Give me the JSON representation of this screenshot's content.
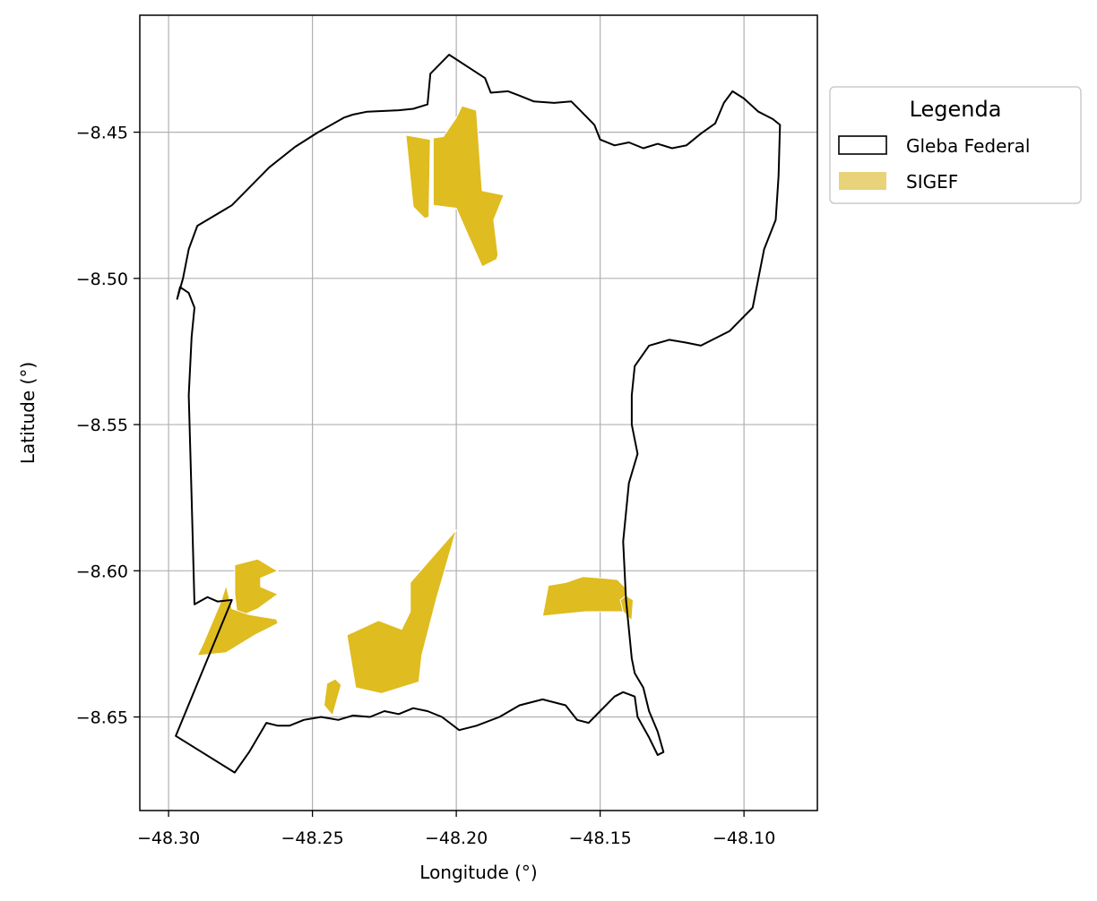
{
  "chart_data": {
    "type": "map",
    "title": "",
    "xlabel": "Longitude (°)",
    "ylabel": "Latitude (°)",
    "xlim": [
      -48.31,
      -48.0745
    ],
    "ylim": [
      -8.682,
      -8.41
    ],
    "grid": true,
    "x_ticks": [
      -48.3,
      -48.25,
      -48.2,
      -48.15,
      -48.1
    ],
    "y_ticks": [
      -8.45,
      -8.5,
      -8.55,
      -8.6,
      -8.65
    ],
    "x_tick_labels": [
      "−48.30",
      "−48.25",
      "−48.20",
      "−48.15",
      "−48.10"
    ],
    "y_tick_labels": [
      "−8.45",
      "−8.50",
      "−8.55",
      "−8.60",
      "−8.65"
    ],
    "legend": {
      "title": "Legenda",
      "position": "outside-top-right",
      "entries": [
        {
          "label": "Gleba Federal",
          "style": "outline",
          "color": "#000000"
        },
        {
          "label": "SIGEF",
          "style": "fill",
          "color": "#e8d37a"
        }
      ]
    },
    "layers": [
      {
        "name": "Gleba Federal",
        "type": "outline",
        "color": "#000000",
        "rings": [
          [
            [
              -48.2025,
              -8.4235
            ],
            [
              -48.19,
              -8.4315
            ],
            [
              -48.188,
              -8.4365
            ],
            [
              -48.182,
              -8.436
            ],
            [
              -48.178,
              -8.4375
            ],
            [
              -48.173,
              -8.4395
            ],
            [
              -48.166,
              -8.44
            ],
            [
              -48.16,
              -8.4395
            ],
            [
              -48.157,
              -8.4425
            ],
            [
              -48.152,
              -8.4475
            ],
            [
              -48.15,
              -8.4525
            ],
            [
              -48.145,
              -8.4545
            ],
            [
              -48.14,
              -8.4535
            ],
            [
              -48.135,
              -8.4555
            ],
            [
              -48.13,
              -8.454
            ],
            [
              -48.125,
              -8.4555
            ],
            [
              -48.12,
              -8.4545
            ],
            [
              -48.115,
              -8.4505
            ],
            [
              -48.11,
              -8.447
            ],
            [
              -48.107,
              -8.44
            ],
            [
              -48.104,
              -8.436
            ],
            [
              -48.1,
              -8.4385
            ],
            [
              -48.095,
              -8.443
            ],
            [
              -48.09,
              -8.4455
            ],
            [
              -48.0875,
              -8.4475
            ],
            [
              -48.088,
              -8.465
            ],
            [
              -48.089,
              -8.48
            ],
            [
              -48.093,
              -8.49
            ],
            [
              -48.095,
              -8.5
            ],
            [
              -48.097,
              -8.51
            ],
            [
              -48.105,
              -8.518
            ],
            [
              -48.115,
              -8.523
            ],
            [
              -48.12,
              -8.522
            ],
            [
              -48.126,
              -8.521
            ],
            [
              -48.133,
              -8.523
            ],
            [
              -48.138,
              -8.53
            ],
            [
              -48.139,
              -8.54
            ],
            [
              -48.139,
              -8.55
            ],
            [
              -48.137,
              -8.56
            ],
            [
              -48.14,
              -8.57
            ],
            [
              -48.142,
              -8.59
            ],
            [
              -48.141,
              -8.61
            ],
            [
              -48.139,
              -8.63
            ],
            [
              -48.138,
              -8.635
            ],
            [
              -48.135,
              -8.64
            ],
            [
              -48.133,
              -8.648
            ],
            [
              -48.13,
              -8.655
            ],
            [
              -48.128,
              -8.662
            ],
            [
              -48.13,
              -8.663
            ],
            [
              -48.133,
              -8.657
            ],
            [
              -48.137,
              -8.65
            ],
            [
              -48.138,
              -8.643
            ],
            [
              -48.142,
              -8.6415
            ],
            [
              -48.145,
              -8.643
            ],
            [
              -48.15,
              -8.648
            ],
            [
              -48.154,
              -8.652
            ],
            [
              -48.158,
              -8.651
            ],
            [
              -48.162,
              -8.646
            ],
            [
              -48.17,
              -8.644
            ],
            [
              -48.178,
              -8.646
            ],
            [
              -48.185,
              -8.65
            ],
            [
              -48.193,
              -8.653
            ],
            [
              -48.199,
              -8.6545
            ],
            [
              -48.205,
              -8.65
            ],
            [
              -48.21,
              -8.648
            ],
            [
              -48.215,
              -8.647
            ],
            [
              -48.22,
              -8.649
            ],
            [
              -48.225,
              -8.648
            ],
            [
              -48.23,
              -8.65
            ],
            [
              -48.236,
              -8.6495
            ],
            [
              -48.241,
              -8.651
            ],
            [
              -48.247,
              -8.65
            ],
            [
              -48.253,
              -8.651
            ],
            [
              -48.258,
              -8.653
            ],
            [
              -48.262,
              -8.653
            ],
            [
              -48.266,
              -8.652
            ],
            [
              -48.272,
              -8.662
            ],
            [
              -48.277,
              -8.669
            ],
            [
              -48.2975,
              -8.6565
            ],
            [
              -48.278,
              -8.61
            ],
            [
              -48.283,
              -8.6105
            ],
            [
              -48.2865,
              -8.609
            ],
            [
              -48.291,
              -8.6115
            ],
            [
              -48.292,
              -8.575
            ],
            [
              -48.293,
              -8.54
            ],
            [
              -48.292,
              -8.52
            ],
            [
              -48.291,
              -8.51
            ],
            [
              -48.293,
              -8.505
            ],
            [
              -48.296,
              -8.503
            ],
            [
              -48.297,
              -8.507
            ],
            [
              -48.295,
              -8.5
            ],
            [
              -48.293,
              -8.49
            ],
            [
              -48.29,
              -8.482
            ],
            [
              -48.278,
              -8.475
            ],
            [
              -48.265,
              -8.462
            ],
            [
              -48.256,
              -8.455
            ],
            [
              -48.248,
              -8.45
            ],
            [
              -48.239,
              -8.445
            ],
            [
              -48.236,
              -8.444
            ],
            [
              -48.231,
              -8.443
            ],
            [
              -48.22,
              -8.4425
            ],
            [
              -48.215,
              -8.442
            ],
            [
              -48.21,
              -8.4405
            ],
            [
              -48.209,
              -8.43
            ]
          ]
        ]
      },
      {
        "name": "SIGEF",
        "type": "fill",
        "color": "#dfbc1f",
        "edge_color": "#ffffff",
        "polygons": [
          [
            [
              -48.2175,
              -8.451
            ],
            [
              -48.209,
              -8.4525
            ],
            [
              -48.2095,
              -8.479
            ],
            [
              -48.211,
              -8.4795
            ],
            [
              -48.215,
              -8.4755
            ]
          ],
          [
            [
              -48.208,
              -8.452
            ],
            [
              -48.2045,
              -8.4515
            ],
            [
              -48.2,
              -8.445
            ],
            [
              -48.198,
              -8.441
            ],
            [
              -48.193,
              -8.4425
            ],
            [
              -48.191,
              -8.47
            ],
            [
              -48.1835,
              -8.4715
            ],
            [
              -48.187,
              -8.48
            ],
            [
              -48.1855,
              -8.492
            ],
            [
              -48.186,
              -8.4935
            ],
            [
              -48.191,
              -8.496
            ],
            [
              -48.196,
              -8.485
            ],
            [
              -48.2,
              -8.476
            ],
            [
              -48.208,
              -8.475
            ]
          ],
          [
            [
              -48.277,
              -8.598
            ],
            [
              -48.269,
              -8.596
            ],
            [
              -48.264,
              -8.599
            ],
            [
              -48.262,
              -8.6
            ],
            [
              -48.268,
              -8.6025
            ],
            [
              -48.268,
              -8.6055
            ],
            [
              -48.262,
              -8.608
            ],
            [
              -48.269,
              -8.613
            ],
            [
              -48.276,
              -8.616
            ],
            [
              -48.277,
              -8.608
            ]
          ],
          [
            [
              -48.28,
              -8.605
            ],
            [
              -48.282,
              -8.611
            ],
            [
              -48.288,
              -8.625
            ],
            [
              -48.29,
              -8.629
            ],
            [
              -48.28,
              -8.628
            ],
            [
              -48.27,
              -8.622
            ],
            [
              -48.262,
              -8.618
            ],
            [
              -48.2625,
              -8.6165
            ],
            [
              -48.272,
              -8.615
            ],
            [
              -48.278,
              -8.613
            ]
          ],
          [
            [
              -48.238,
              -8.622
            ],
            [
              -48.227,
              -8.617
            ],
            [
              -48.219,
              -8.62
            ],
            [
              -48.216,
              -8.614
            ],
            [
              -48.216,
              -8.604
            ],
            [
              -48.208,
              -8.595
            ],
            [
              -48.2,
              -8.586
            ],
            [
              -48.207,
              -8.61
            ],
            [
              -48.212,
              -8.629
            ],
            [
              -48.213,
              -8.638
            ],
            [
              -48.226,
              -8.642
            ],
            [
              -48.235,
              -8.64
            ]
          ],
          [
            [
              -48.245,
              -8.6385
            ],
            [
              -48.242,
              -8.637
            ],
            [
              -48.24,
              -8.639
            ],
            [
              -48.243,
              -8.6495
            ],
            [
              -48.246,
              -8.646
            ]
          ],
          [
            [
              -48.162,
              -8.604
            ],
            [
              -48.168,
              -8.605
            ],
            [
              -48.17,
              -8.6155
            ],
            [
              -48.155,
              -8.614
            ],
            [
              -48.148,
              -8.614
            ],
            [
              -48.142,
              -8.614
            ],
            [
              -48.141,
              -8.606
            ],
            [
              -48.144,
              -8.603
            ],
            [
              -48.149,
              -8.6025
            ],
            [
              -48.156,
              -8.602
            ]
          ],
          [
            [
              -48.142,
              -8.614
            ],
            [
              -48.139,
              -8.617
            ],
            [
              -48.1385,
              -8.61
            ],
            [
              -48.141,
              -8.6085
            ],
            [
              -48.143,
              -8.61
            ]
          ]
        ]
      }
    ]
  }
}
